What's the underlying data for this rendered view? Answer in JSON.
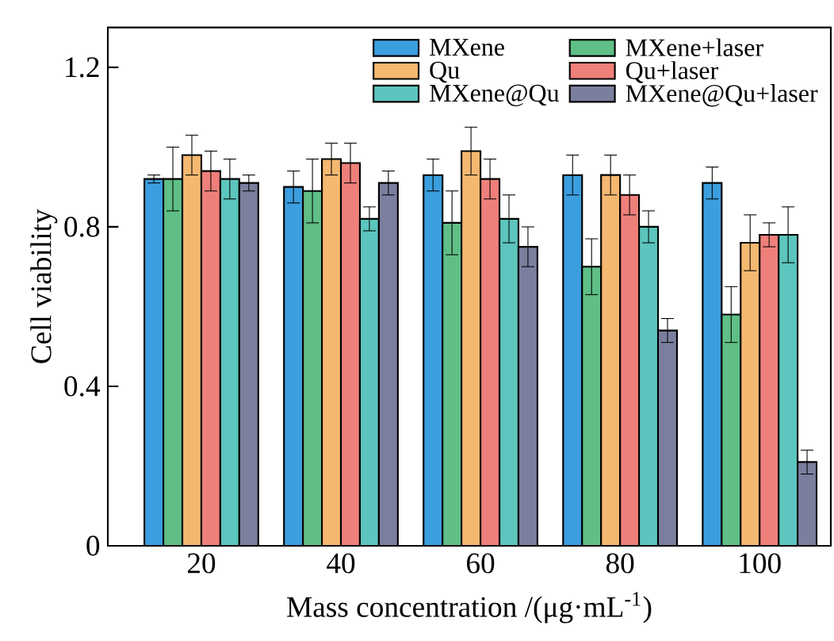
{
  "chart_data": {
    "type": "bar",
    "xlabel": "Mass concentration /(μg·mL$^{-1}$)",
    "ylabel": "Cell viability",
    "categories": [
      "20",
      "40",
      "60",
      "80",
      "100"
    ],
    "ylim": [
      0,
      1.3
    ],
    "yticks": [
      0,
      0.4,
      0.8,
      1.2
    ],
    "legend": "top right",
    "grid": false,
    "series": [
      {
        "name": "MXene",
        "color": "#3b9ede",
        "values": [
          0.92,
          0.9,
          0.93,
          0.93,
          0.91
        ],
        "errors": [
          0.01,
          0.04,
          0.04,
          0.05,
          0.04
        ]
      },
      {
        "name": "MXene+laser",
        "color": "#5fbf86",
        "values": [
          0.92,
          0.89,
          0.81,
          0.7,
          0.58
        ],
        "errors": [
          0.08,
          0.08,
          0.08,
          0.07,
          0.07
        ]
      },
      {
        "name": "Qu",
        "color": "#f5b870",
        "values": [
          0.98,
          0.97,
          0.99,
          0.93,
          0.76
        ],
        "errors": [
          0.05,
          0.04,
          0.06,
          0.05,
          0.07
        ]
      },
      {
        "name": "Qu+laser",
        "color": "#ef7f7a",
        "values": [
          0.94,
          0.96,
          0.92,
          0.88,
          0.78
        ],
        "errors": [
          0.05,
          0.05,
          0.05,
          0.05,
          0.03
        ]
      },
      {
        "name": "MXene@Qu",
        "color": "#5cc5bd",
        "values": [
          0.92,
          0.82,
          0.82,
          0.8,
          0.78
        ],
        "errors": [
          0.05,
          0.03,
          0.06,
          0.04,
          0.07
        ]
      },
      {
        "name": "MXene@Qu+laser",
        "color": "#7b7f9e",
        "values": [
          0.91,
          0.91,
          0.75,
          0.54,
          0.21
        ],
        "errors": [
          0.02,
          0.03,
          0.05,
          0.03,
          0.03
        ]
      }
    ]
  }
}
